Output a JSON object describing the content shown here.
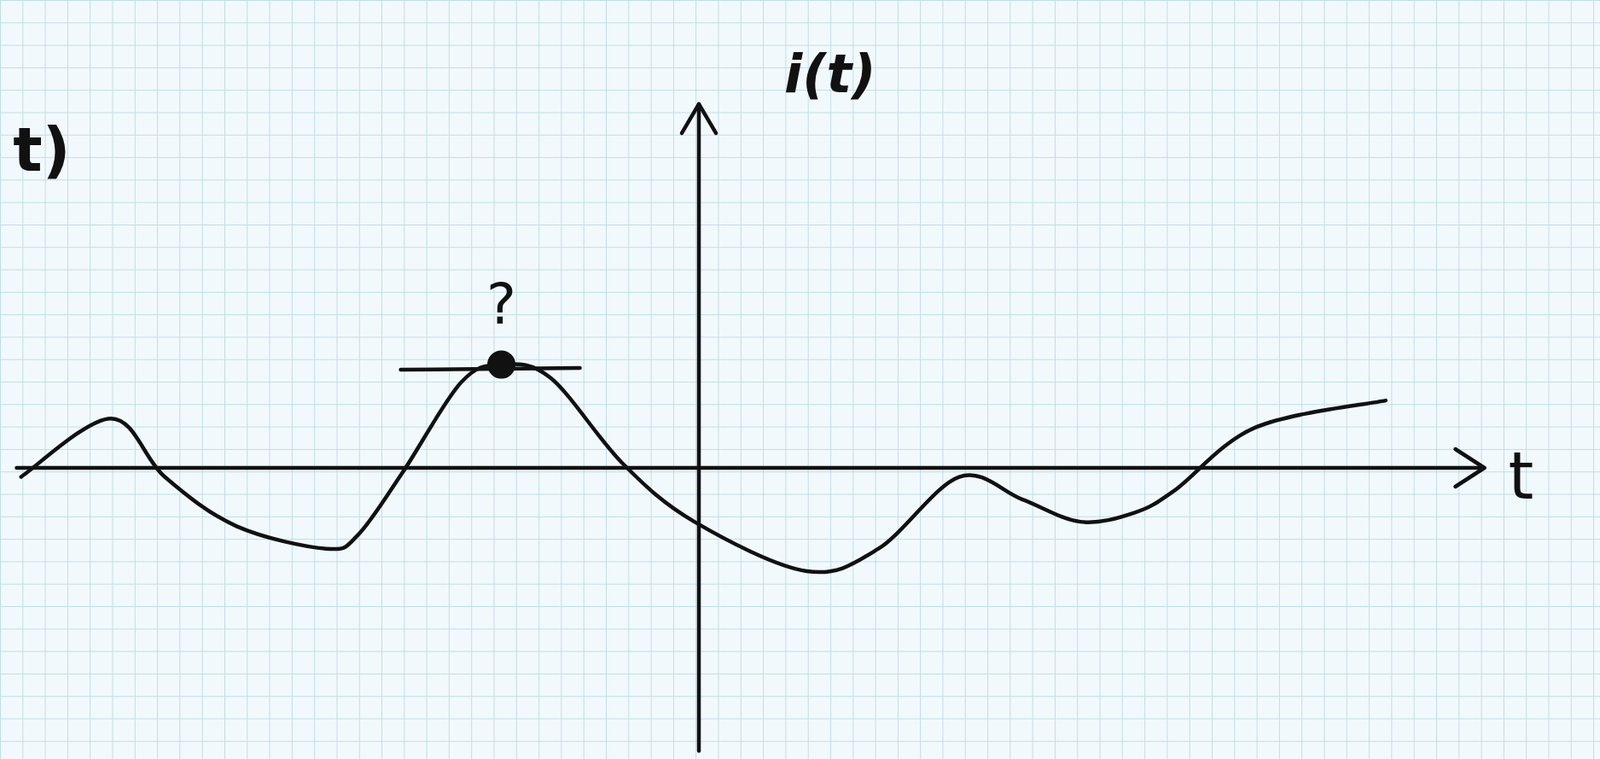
{
  "chart_data": {
    "type": "line",
    "x_label": "t",
    "y_label": "i(t)",
    "x": [
      -15.1,
      -13.1,
      -11.9,
      -10.3,
      -8.3,
      -7.6,
      -6.6,
      -5.3,
      -4.4,
      -3.3,
      -1.7,
      -0.1,
      2.4,
      4.0,
      5.8,
      7.2,
      8.5,
      9.7,
      10.6,
      12.4,
      15.3
    ],
    "values": [
      -0.2,
      1.1,
      -0.2,
      -1.3,
      -1.8,
      -1.5,
      -0.1,
      1.9,
      2.3,
      2.0,
      0.1,
      -1.2,
      -2.3,
      -1.8,
      -0.2,
      -0.7,
      -1.2,
      -1.0,
      -0.5,
      0.9,
      1.5
    ],
    "color": "#111111",
    "xlim": [
      -15.2,
      17.5
    ],
    "ylim": [
      -6.3,
      8.1
    ],
    "xticks": [],
    "yticks": [],
    "tick_labels": false,
    "annotations": [
      {
        "text": "?",
        "x": -4.4,
        "y": 2.3
      },
      {
        "text": "t)",
        "x": -14.9,
        "y": 7.0
      }
    ]
  }
}
